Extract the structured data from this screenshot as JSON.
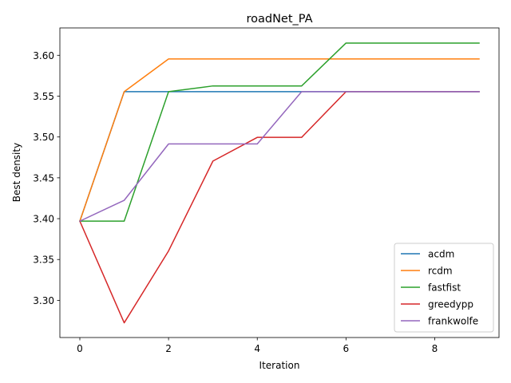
{
  "chart_data": {
    "type": "line",
    "title": "roadNet_PA",
    "xlabel": "Iteration",
    "ylabel": "Best density",
    "xlim": [
      -0.45,
      9.45
    ],
    "ylim": [
      3.2545,
      3.6335
    ],
    "xticks": [
      0,
      2,
      4,
      6,
      8
    ],
    "yticks": [
      3.3,
      3.35,
      3.4,
      3.45,
      3.5,
      3.55,
      3.6
    ],
    "ytick_labels": [
      "3.30",
      "3.35",
      "3.40",
      "3.45",
      "3.50",
      "3.55",
      "3.60"
    ],
    "grid": false,
    "legend_position": "lower-right",
    "x": [
      0,
      1,
      2,
      3,
      4,
      5,
      6,
      7,
      8,
      9
    ],
    "series": [
      {
        "name": "acdm",
        "color": "#1f77b4",
        "values": [
          3.397,
          3.5555,
          3.5555,
          3.5555,
          3.5555,
          3.5555,
          3.5555,
          3.5555,
          3.5555,
          3.5555
        ]
      },
      {
        "name": "rcdm",
        "color": "#ff7f0e",
        "values": [
          3.397,
          3.5555,
          3.5955,
          3.5955,
          3.5955,
          3.5955,
          3.5955,
          3.5955,
          3.5955,
          3.5955
        ]
      },
      {
        "name": "fastfist",
        "color": "#2ca02c",
        "values": [
          3.397,
          3.397,
          3.5555,
          3.5625,
          3.5625,
          3.5625,
          3.615,
          3.615,
          3.615,
          3.615
        ]
      },
      {
        "name": "greedypp",
        "color": "#d62728",
        "values": [
          3.397,
          3.2725,
          3.3605,
          3.4705,
          3.4995,
          3.4995,
          3.5555,
          3.5555,
          3.5555,
          3.5555
        ]
      },
      {
        "name": "frankwolfe",
        "color": "#9467bd",
        "values": [
          3.397,
          3.4225,
          3.4915,
          3.4915,
          3.4915,
          3.5555,
          3.5555,
          3.5555,
          3.5555,
          3.5555
        ]
      }
    ]
  }
}
